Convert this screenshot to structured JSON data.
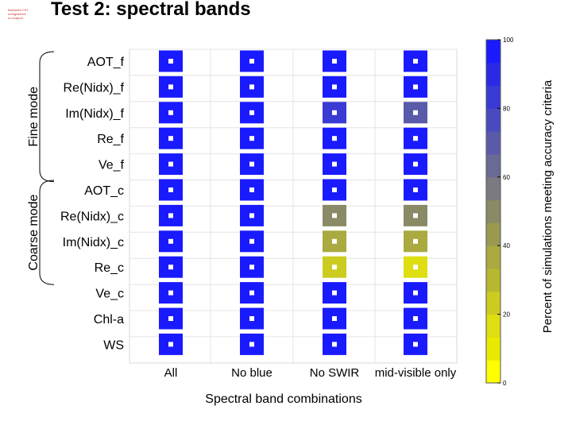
{
  "header": {
    "title": "Test 2: spectral bands",
    "logo_lines": [
      "Maxwell's FST",
      "unregistered",
      "no support"
    ]
  },
  "chart_data": {
    "type": "heatmap",
    "title": "Test 2: spectral bands",
    "xlabel": "Spectral band combinations",
    "x": [
      "All",
      "No blue",
      "No SWIR",
      "mid-visible only"
    ],
    "y": [
      "AOT_f",
      "Re(Nidx)_f",
      "Im(Nidx)_f",
      "Re_f",
      "Ve_f",
      "AOT_c",
      "Re(Nidx)_c",
      "Im(Nidx)_c",
      "Re_c",
      "Ve_c",
      "Chl-a",
      "WS"
    ],
    "groups": [
      {
        "name": "Fine mode",
        "rows": [
          "AOT_f",
          "Re(Nidx)_f",
          "Im(Nidx)_f",
          "Re_f",
          "Ve_f"
        ]
      },
      {
        "name": "Coarse mode",
        "rows": [
          "AOT_c",
          "Re(Nidx)_c",
          "Im(Nidx)_c",
          "Re_c"
        ]
      }
    ],
    "values": [
      [
        100,
        100,
        100,
        100
      ],
      [
        100,
        100,
        100,
        100
      ],
      [
        100,
        100,
        84,
        70
      ],
      [
        100,
        100,
        100,
        100
      ],
      [
        100,
        100,
        100,
        100
      ],
      [
        100,
        100,
        100,
        100
      ],
      [
        100,
        100,
        50,
        50
      ],
      [
        100,
        100,
        35,
        35
      ],
      [
        100,
        100,
        20,
        15
      ],
      [
        100,
        100,
        100,
        100
      ],
      [
        100,
        100,
        100,
        100
      ],
      [
        100,
        100,
        100,
        100
      ]
    ],
    "colorbar": {
      "label": "Percent of simulations meeting accuracy criteria",
      "range": [
        0,
        100
      ],
      "ticks": [
        0,
        20,
        40,
        60,
        80,
        100
      ]
    },
    "colors": {
      "scale": [
        "#ffff00",
        "#eaea00",
        "#dede10",
        "#cccc20",
        "#b8b830",
        "#aaaa40",
        "#999950",
        "#8a8a66",
        "#7a7a80",
        "#6a6a96",
        "#5a5aaa",
        "#4a4ac0",
        "#3a3ad4",
        "#2a2ae6",
        "#1a1aff"
      ],
      "max": "#1a1aff"
    }
  }
}
